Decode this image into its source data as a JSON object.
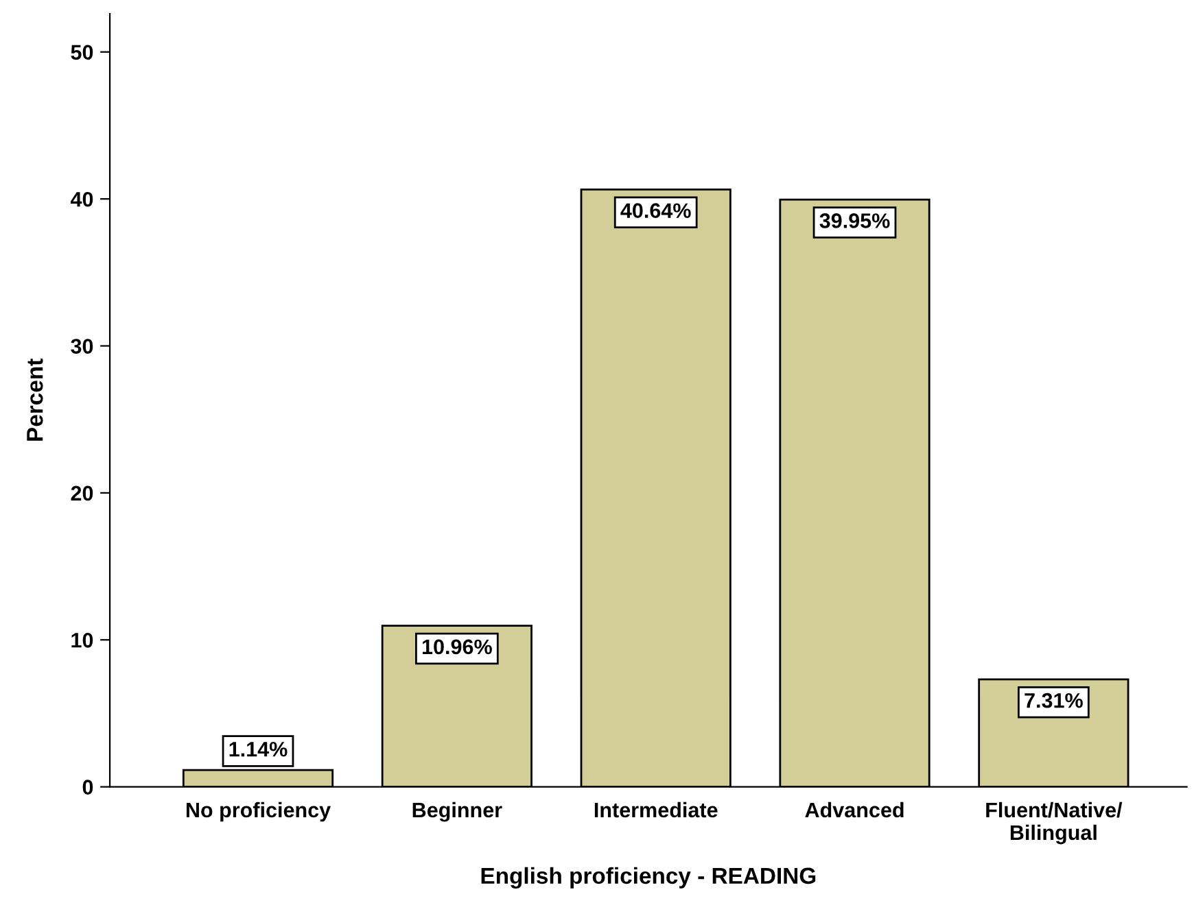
{
  "chart_data": {
    "type": "bar",
    "xlabel": "English proficiency - READING",
    "ylabel": "Percent",
    "categories": [
      "No proficiency",
      "Beginner",
      "Intermediate",
      "Advanced",
      "Fluent/Native/\nBilingual"
    ],
    "values": [
      1.14,
      10.96,
      40.64,
      39.95,
      7.31
    ],
    "value_labels": [
      "1.14%",
      "10.96%",
      "40.64%",
      "39.95%",
      "7.31%"
    ],
    "color": "#d3ce98",
    "ylim": [
      0,
      52.6
    ],
    "yticks": [
      0,
      10,
      20,
      30,
      40,
      50
    ],
    "grid": false,
    "legend": false
  }
}
